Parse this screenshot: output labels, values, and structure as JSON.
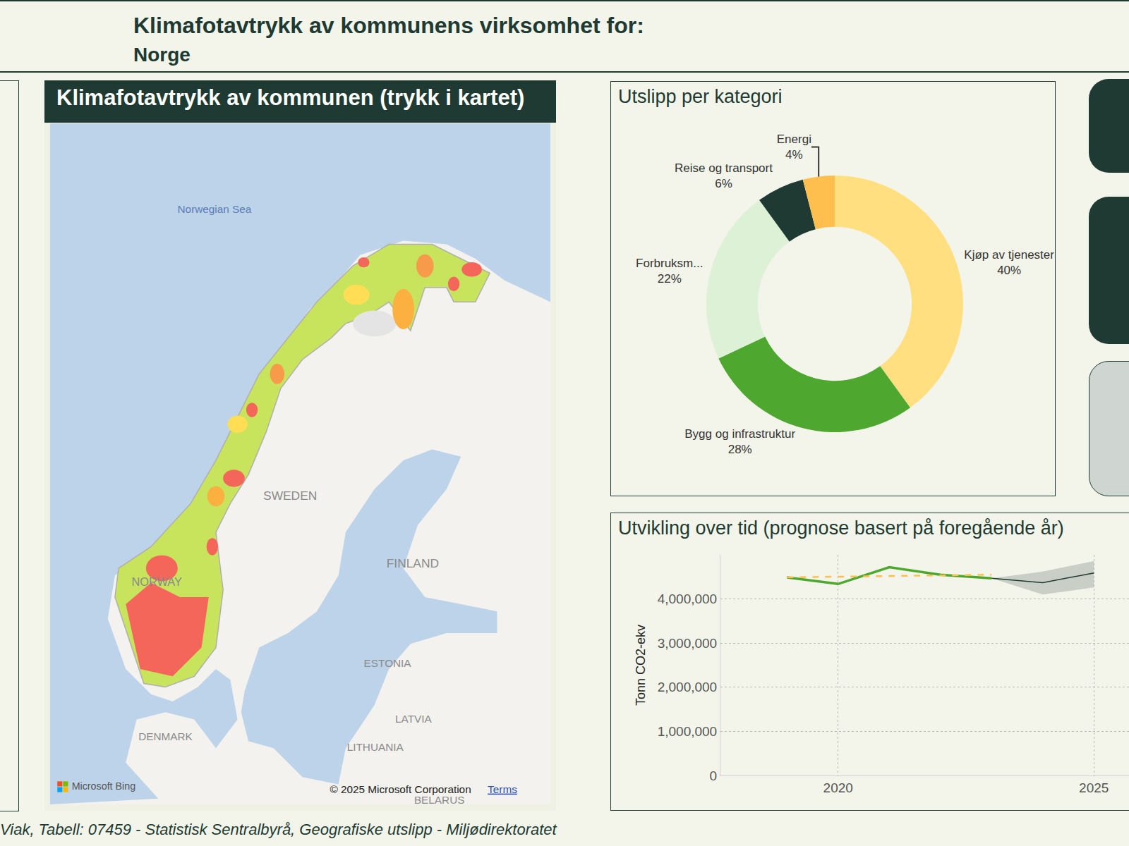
{
  "header": {
    "title": "Klimafotavtrykk av kommunens virksomhet for:",
    "subtitle": "Norge"
  },
  "map_panel": {
    "title": "Klimafotavtrykk av kommunen (trykk i kartet)",
    "labels": [
      "Norwegian Sea",
      "SWEDEN",
      "FINLAND",
      "NORWAY",
      "ESTONIA",
      "LATVIA",
      "LITHUANIA",
      "DENMARK",
      "BELARUS"
    ],
    "attribution": {
      "logo": "Microsoft Bing",
      "copyright": "© 2025 Microsoft Corporation",
      "link": "Terms"
    }
  },
  "footer": {
    "source": "Viak, Tabell: 07459 - Statistisk Sentralbyrå, Geografiske utslipp - Miljødirektoratet"
  },
  "chart_data": [
    {
      "type": "donut",
      "title": "Utslipp per kategori",
      "categories": [
        "Kjøp av tjenester",
        "Bygg og infrastruktur",
        "Forbruksm...",
        "Reise og transport",
        "Energi"
      ],
      "values": [
        40,
        28,
        22,
        6,
        4
      ],
      "value_labels": [
        "40%",
        "28%",
        "22%",
        "6%",
        "4%"
      ],
      "colors": [
        "#ffdf80",
        "#4ea72e",
        "#dcf1d6",
        "#1e3a32",
        "#ffbf4f"
      ],
      "data_labels": true
    },
    {
      "type": "line",
      "title": "Utvikling over tid (prognose basert på foregående år)",
      "y_label": "Tonn CO2-ekv",
      "x": [
        2019,
        2020,
        2021,
        2022,
        2023,
        2024,
        2025
      ],
      "series": [
        {
          "color": "#4ea72e",
          "line_style": "solid",
          "values": [
            4490000,
            4340000,
            4720000,
            4550000,
            4470000,
            null,
            null
          ]
        },
        {
          "color": "#ffbf4f",
          "line_style": "dash",
          "values": [
            4490000,
            4505000,
            4520000,
            4535000,
            4550000,
            null,
            null
          ]
        },
        {
          "color": "#1e3a32",
          "line_style": "solid",
          "values": [
            null,
            null,
            null,
            null,
            4470000,
            4370000,
            4590000
          ],
          "lower": [
            null,
            null,
            null,
            null,
            4470000,
            4100000,
            4260000
          ],
          "upper": [
            null,
            null,
            null,
            null,
            4470000,
            4620000,
            4860000
          ]
        }
      ],
      "xlim": [
        2017.7,
        2025.7
      ],
      "xticks": [
        2020,
        2025
      ],
      "ylim": [
        0,
        5000000
      ],
      "yticks": [
        0,
        {
          "value": 1000000,
          "label": "1,000,000"
        },
        {
          "value": 2000000,
          "label": "2,000,000"
        },
        {
          "value": 3000000,
          "label": "3,000,000"
        },
        {
          "value": 4000000,
          "label": "4,000,000"
        }
      ],
      "grid": true
    }
  ]
}
